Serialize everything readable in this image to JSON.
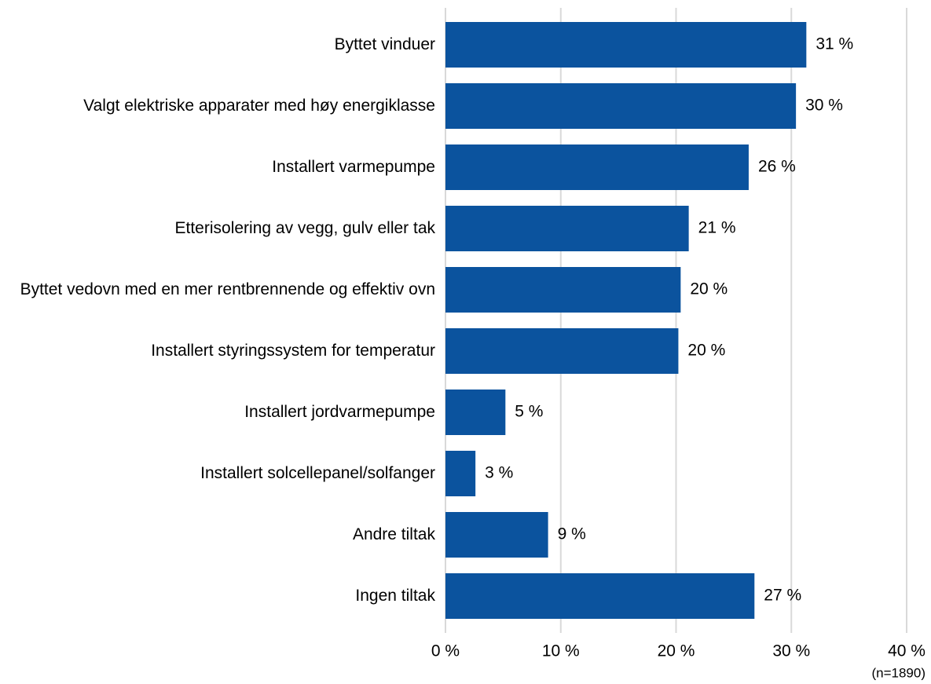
{
  "chart_data": {
    "type": "bar",
    "orientation": "horizontal",
    "categories": [
      "Byttet vinduer",
      "Valgt elektriske apparater med høy energiklasse",
      "Installert varmepumpe",
      "Etterisolering av vegg, gulv eller tak",
      "Byttet vedovn med en mer rentbrennende og effektiv ovn",
      "Installert styringssystem for temperatur",
      "Installert jordvarmepumpe",
      "Installert solcellepanel/solfanger",
      "Andre tiltak",
      "Ingen tiltak"
    ],
    "values": [
      31.3,
      30.4,
      26.3,
      21.1,
      20.4,
      20.2,
      5.2,
      2.6,
      8.9,
      26.8
    ],
    "value_labels": [
      "31 %",
      "30 %",
      "26 %",
      "21 %",
      "20 %",
      "20 %",
      "5 %",
      "3 %",
      "9 %",
      "27 %"
    ],
    "color": "#0b539e",
    "xlim": [
      0,
      40
    ],
    "xticks": [
      {
        "value": 0,
        "label": "0 %"
      },
      {
        "value": 10,
        "label": "10 %"
      },
      {
        "value": 20,
        "label": "20 %"
      },
      {
        "value": 30,
        "label": "30 %"
      },
      {
        "value": 40,
        "label": "40 %"
      }
    ],
    "grid": true,
    "annotation": "(n=1890)"
  }
}
